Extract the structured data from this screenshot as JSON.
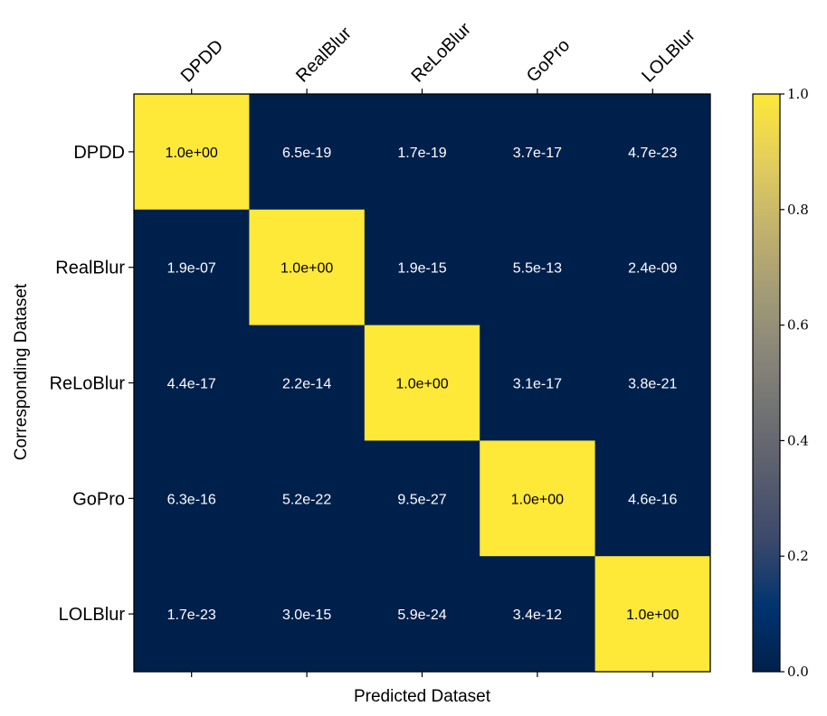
{
  "chart_data": {
    "type": "heatmap",
    "title": "",
    "xlabel": "Predicted Dataset",
    "ylabel": "Corresponding Dataset",
    "x_categories": [
      "DPDD",
      "RealBlur",
      "ReLoBlur",
      "GoPro",
      "LOLBlur"
    ],
    "y_categories": [
      "DPDD",
      "RealBlur",
      "ReLoBlur",
      "GoPro",
      "LOLBlur"
    ],
    "values": [
      [
        1.0,
        6.5e-19,
        1.7e-19,
        3.7e-17,
        4.7e-23
      ],
      [
        1.9e-07,
        1.0,
        1.9e-15,
        5.5e-13,
        2.4e-09
      ],
      [
        4.4e-17,
        2.2e-14,
        1.0,
        3.1e-17,
        3.8e-21
      ],
      [
        6.3e-16,
        5.2e-22,
        9.5e-27,
        1.0,
        4.6e-16
      ],
      [
        1.7e-23,
        3e-15,
        5.9e-24,
        3.4e-12,
        1.0
      ]
    ],
    "cell_labels": [
      [
        "1.0e+00",
        "6.5e-19",
        "1.7e-19",
        "3.7e-17",
        "4.7e-23"
      ],
      [
        "1.9e-07",
        "1.0e+00",
        "1.9e-15",
        "5.5e-13",
        "2.4e-09"
      ],
      [
        "4.4e-17",
        "2.2e-14",
        "1.0e+00",
        "3.1e-17",
        "3.8e-21"
      ],
      [
        "6.3e-16",
        "5.2e-22",
        "9.5e-27",
        "1.0e+00",
        "4.6e-16"
      ],
      [
        "1.7e-23",
        "3.0e-15",
        "5.9e-24",
        "3.4e-12",
        "1.0e+00"
      ]
    ],
    "colormap": "cividis",
    "colormap_stops": [
      "#00204c",
      "#00336f",
      "#39486b",
      "#575c6d",
      "#707173",
      "#8a8779",
      "#a69d75",
      "#c4b56c",
      "#e4cf5b",
      "#fee838"
    ],
    "color_range": [
      0.0,
      1.0
    ],
    "colorbar": {
      "ticks": [
        0.0,
        0.2,
        0.4,
        0.6,
        0.8,
        1.0
      ],
      "tick_labels": [
        "0.0",
        "0.2",
        "0.4",
        "0.6",
        "0.8",
        "1.0"
      ],
      "placement": "right"
    },
    "x_tick_label_rotation_deg": -45,
    "x_tick_labels_position": "top",
    "grid": false
  }
}
